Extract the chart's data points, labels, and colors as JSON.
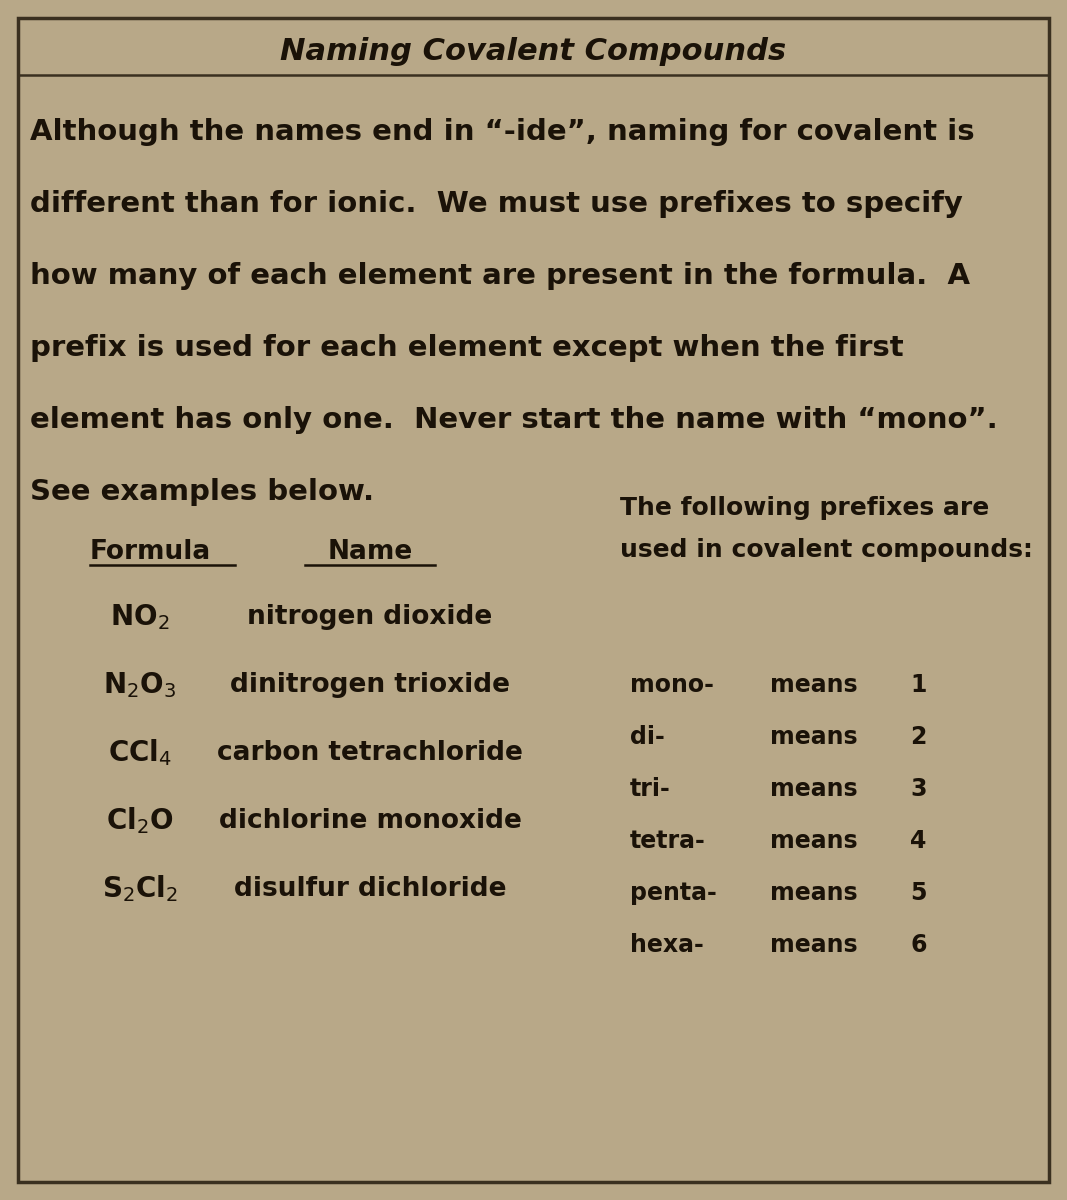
{
  "title": "Naming Covalent Compounds",
  "body_lines": [
    "Although the names end in “-ide”, naming for covalent is",
    "different than for ionic.  We must use prefixes to specify",
    "how many of each element are present in the formula.  A",
    "prefix is used for each element except when the first",
    "element has only one.  Never start the name with “mono”.",
    "See examples below."
  ],
  "formula_header": "Formula",
  "name_header": "Name",
  "prefix_header_line1": "The following prefixes are",
  "prefix_header_line2": "used in covalent compounds:",
  "formulas": [
    "NO$_2$",
    "N$_2$O$_3$",
    "CCl$_4$",
    "Cl$_2$O",
    "S$_2$Cl$_2$"
  ],
  "names": [
    "nitrogen dioxide",
    "dinitrogen trioxide",
    "carbon tetrachloride",
    "dichlorine monoxide",
    "disulfur dichloride"
  ],
  "prefixes": [
    "mono-",
    "di-",
    "tri-",
    "tetra-",
    "penta-",
    "hexa-"
  ],
  "prefix_nums": [
    "1",
    "2",
    "3",
    "4",
    "5",
    "6"
  ],
  "bg_color": "#b8a888",
  "text_color": "#1a1208",
  "border_color": "#3a3020",
  "title_fontsize": 22,
  "body_fontsize": 21,
  "table_fontsize": 19,
  "prefix_fontsize": 17
}
